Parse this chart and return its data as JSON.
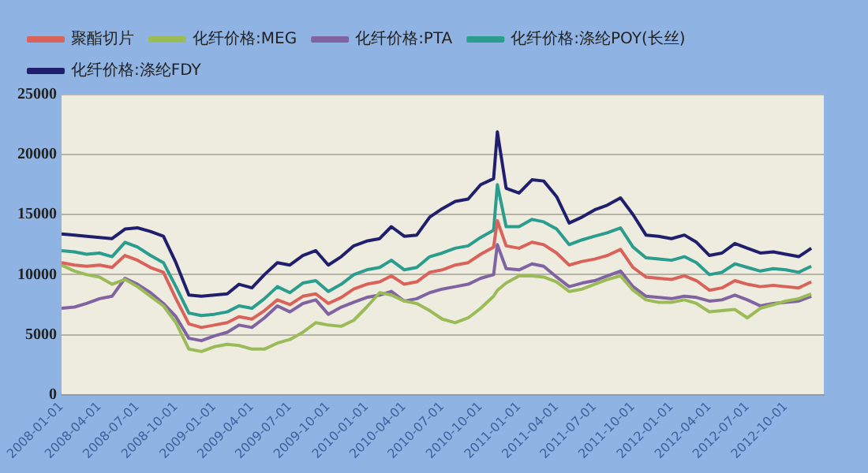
{
  "chart_data": {
    "type": "line",
    "x": [
      "2008-01-01",
      "2008-02-01",
      "2008-03-01",
      "2008-04-01",
      "2008-05-01",
      "2008-06-01",
      "2008-07-01",
      "2008-08-01",
      "2008-09-01",
      "2008-10-01",
      "2008-11-01",
      "2008-12-01",
      "2009-01-01",
      "2009-02-01",
      "2009-03-01",
      "2009-04-01",
      "2009-05-01",
      "2009-06-01",
      "2009-07-01",
      "2009-08-01",
      "2009-09-01",
      "2009-10-01",
      "2009-11-01",
      "2009-12-01",
      "2010-01-01",
      "2010-02-01",
      "2010-03-01",
      "2010-04-01",
      "2010-05-01",
      "2010-06-01",
      "2010-07-01",
      "2010-08-01",
      "2010-09-01",
      "2010-10-01",
      "2010-11-01",
      "2010-11-10",
      "2010-12-01",
      "2011-01-01",
      "2011-02-01",
      "2011-03-01",
      "2011-04-01",
      "2011-05-01",
      "2011-06-01",
      "2011-07-01",
      "2011-08-01",
      "2011-09-01",
      "2011-10-01",
      "2011-11-01",
      "2011-12-01",
      "2012-01-01",
      "2012-02-01",
      "2012-03-01",
      "2012-04-01",
      "2012-05-01",
      "2012-06-01",
      "2012-07-01",
      "2012-08-01",
      "2012-09-01",
      "2012-10-01",
      "2012-11-01",
      "2012-12-01"
    ],
    "series": [
      {
        "name": "聚酯切片",
        "color": "#d9625a",
        "values": [
          11000,
          10800,
          10700,
          10800,
          10600,
          11600,
          11200,
          10600,
          10200,
          8000,
          5900,
          5600,
          5800,
          6000,
          6500,
          6300,
          7000,
          7900,
          7500,
          8200,
          8400,
          7600,
          8100,
          8800,
          9200,
          9400,
          9900,
          9200,
          9400,
          10200,
          10400,
          10800,
          11000,
          11700,
          12300,
          14500,
          12400,
          12200,
          12700,
          12500,
          11800,
          10800,
          11100,
          11300,
          11600,
          12100,
          10600,
          9800,
          9700,
          9600,
          9900,
          9500,
          8700,
          8900,
          9500,
          9200,
          9000,
          9100,
          9000,
          8900,
          9400
        ]
      },
      {
        "name": "化纤价格:MEG",
        "color": "#9bbb59",
        "values": [
          10800,
          10300,
          10000,
          9800,
          9200,
          9600,
          9000,
          8200,
          7400,
          6000,
          3800,
          3600,
          4000,
          4200,
          4100,
          3800,
          3800,
          4300,
          4600,
          5200,
          6000,
          5800,
          5700,
          6200,
          7300,
          8500,
          8300,
          7800,
          7600,
          7000,
          6300,
          6000,
          6400,
          7200,
          8200,
          8700,
          9300,
          9900,
          9900,
          9800,
          9400,
          8600,
          8800,
          9200,
          9600,
          9900,
          8700,
          7900,
          7700,
          7700,
          7900,
          7600,
          6900,
          7000,
          7100,
          6400,
          7200,
          7500,
          7800,
          8000,
          8400
        ]
      },
      {
        "name": "化纤价格:PTA",
        "color": "#8064a2",
        "values": [
          7200,
          7300,
          7600,
          8000,
          8200,
          9700,
          9200,
          8500,
          7600,
          6500,
          4700,
          4500,
          4900,
          5200,
          5800,
          5600,
          6400,
          7400,
          6900,
          7600,
          7900,
          6700,
          7300,
          7700,
          8100,
          8300,
          8600,
          7800,
          8000,
          8500,
          8800,
          9000,
          9200,
          9700,
          10000,
          12500,
          10500,
          10400,
          10900,
          10700,
          9800,
          9000,
          9300,
          9500,
          9900,
          10300,
          9000,
          8200,
          8100,
          8000,
          8200,
          8100,
          7800,
          7900,
          8300,
          7900,
          7400,
          7600,
          7700,
          7800,
          8200
        ]
      },
      {
        "name": "化纤价格:涤纶POY(长丝)",
        "color": "#2a9d8f",
        "values": [
          12000,
          11900,
          11700,
          11800,
          11500,
          12700,
          12300,
          11600,
          11000,
          9000,
          6800,
          6600,
          6700,
          6900,
          7400,
          7200,
          8000,
          9000,
          8500,
          9300,
          9500,
          8600,
          9200,
          10000,
          10400,
          10600,
          11200,
          10400,
          10600,
          11500,
          11800,
          12200,
          12400,
          13100,
          13700,
          17500,
          14000,
          14000,
          14600,
          14400,
          13800,
          12500,
          12900,
          13200,
          13500,
          13900,
          12300,
          11400,
          11300,
          11200,
          11500,
          11000,
          10000,
          10200,
          10900,
          10600,
          10300,
          10500,
          10400,
          10200,
          10700
        ]
      },
      {
        "name": "化纤价格:涤纶FDY",
        "color": "#1f1f6e",
        "values": [
          13400,
          13300,
          13200,
          13100,
          13000,
          13800,
          13900,
          13600,
          13200,
          11000,
          8300,
          8200,
          8300,
          8400,
          9200,
          8900,
          10000,
          11000,
          10800,
          11600,
          12000,
          10800,
          11500,
          12400,
          12800,
          13000,
          14000,
          13200,
          13300,
          14800,
          15500,
          16100,
          16300,
          17500,
          18000,
          21900,
          17200,
          16800,
          17900,
          17800,
          16500,
          14300,
          14800,
          15400,
          15800,
          16400,
          15000,
          13300,
          13200,
          13000,
          13300,
          12700,
          11600,
          11800,
          12600,
          12200,
          11800,
          11900,
          11700,
          11500,
          12200
        ]
      }
    ],
    "xlim": [
      "2008-01-01",
      "2012-12-31"
    ],
    "xticks": [
      "2008-01-01",
      "2008-04-01",
      "2008-07-01",
      "2008-10-01",
      "2009-01-01",
      "2009-04-01",
      "2009-07-01",
      "2009-10-01",
      "2010-01-01",
      "2010-04-01",
      "2010-07-01",
      "2010-10-01",
      "2011-01-01",
      "2011-04-01",
      "2011-07-01",
      "2011-10-01",
      "2012-01-01",
      "2012-04-01",
      "2012-07-01",
      "2012-10-01"
    ],
    "ylim": [
      0,
      25000
    ],
    "yticks": [
      0,
      5000,
      10000,
      15000,
      20000,
      25000
    ],
    "grid": "y",
    "legend": "top left",
    "marker": "none",
    "line_style": "solid"
  }
}
